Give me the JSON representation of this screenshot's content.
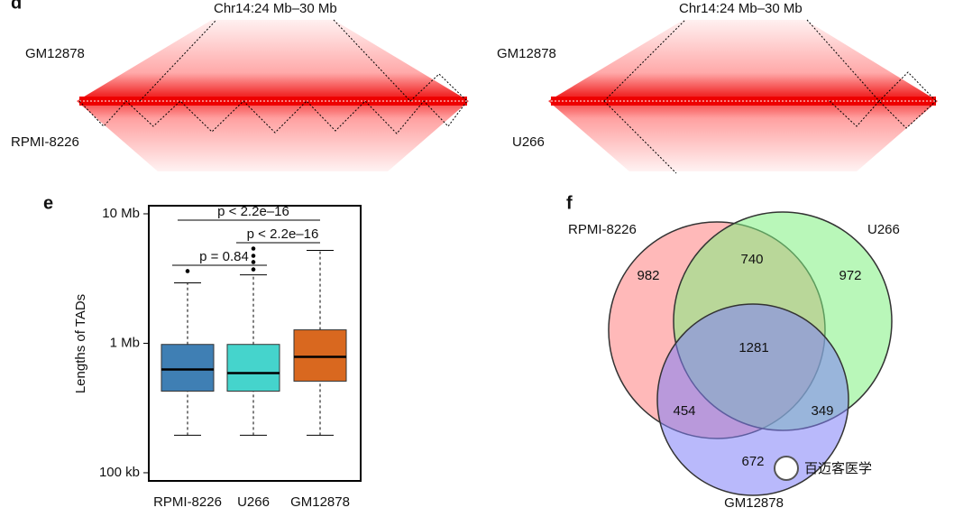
{
  "panel_d": {
    "label": "d",
    "left": {
      "title": "Chr14:24 Mb–30 Mb",
      "top_label": "GM12878",
      "bottom_label": "RPMI-8226"
    },
    "right": {
      "title": "Chr14:24 Mb–30 Mb",
      "top_label": "GM12878",
      "bottom_label": "U266"
    }
  },
  "chart_data": [
    {
      "type": "box",
      "panel_label": "e",
      "y_label": "Lengths of TADs",
      "categories": [
        "RPMI-8226",
        "U266",
        "GM12878"
      ],
      "colors": [
        "#3f7fb4",
        "#45d4cc",
        "#d9681f"
      ],
      "whisker_low": [
        0.195,
        0.195,
        0.195
      ],
      "q1": [
        0.427,
        0.427,
        0.51
      ],
      "median": [
        0.628,
        0.589,
        0.785
      ],
      "q3": [
        0.98,
        0.98,
        1.27
      ],
      "whisker_high": [
        2.93,
        3.38,
        5.22
      ],
      "outliers": [
        [
          3.61
        ],
        [
          3.72,
          4.24,
          4.74,
          5.39
        ],
        []
      ],
      "log_scale": true,
      "ylim": [
        0.0865,
        11.55
      ],
      "yticks": [
        {
          "value": 10,
          "label": "10 Mb"
        },
        {
          "value": 1,
          "label": "1 Mb"
        },
        {
          "value": 0.1,
          "label": "100 kb"
        }
      ],
      "annotations": [
        "p < 2.2e–16",
        "p < 2.2e–16",
        "p = 0.84"
      ]
    },
    {
      "type": "venn",
      "panel_label": "f",
      "sets": [
        {
          "name": "RPMI-8226",
          "color": "#ff8080"
        },
        {
          "name": "U266",
          "color": "#80f080"
        },
        {
          "name": "GM12878",
          "color": "#8080f8"
        }
      ],
      "region_values": [
        982,
        740,
        972,
        454,
        1281,
        349,
        672
      ],
      "watermark": "百迈客医学"
    }
  ]
}
